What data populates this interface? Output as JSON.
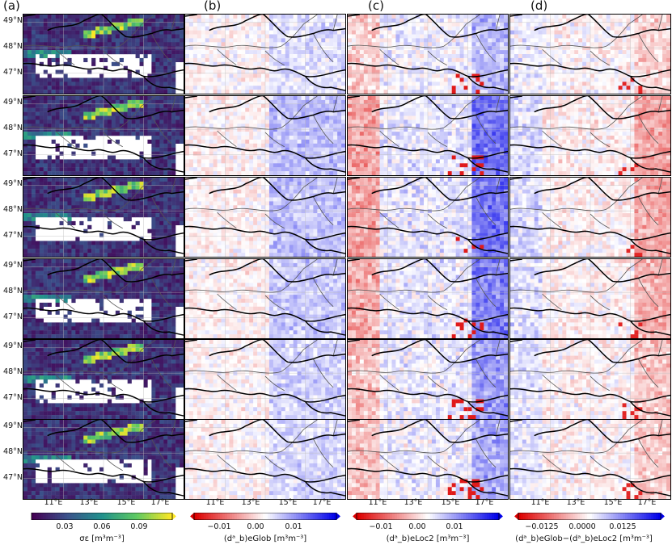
{
  "columns": [
    {
      "label": "(a)",
      "colorbar_label": "σε [m³m⁻³]",
      "colorbar_ticks": [
        "0.03",
        "0.06",
        "0.09"
      ],
      "colormap": "viridis"
    },
    {
      "label": "(b)",
      "colorbar_label": "(dᵃ_b)eGlob [m³m⁻³]",
      "colorbar_ticks": [
        "−0.01",
        "0.00",
        "0.01"
      ],
      "colormap": "seismic_r"
    },
    {
      "label": "(c)",
      "colorbar_label": "(dᵃ_b)eLoc2 [m³m⁻³]",
      "colorbar_ticks": [
        "−0.01",
        "0.00",
        "0.01"
      ],
      "colormap": "seismic_r"
    },
    {
      "label": "(d)",
      "colorbar_label": "(dᵃ_b)eGlob−(dᵃ_b)eLoc2 [m³m⁻³]",
      "colorbar_ticks": [
        "−0.0125",
        "0.0000",
        "0.0125"
      ],
      "colormap": "seismic_r"
    }
  ],
  "lat_labels": [
    "49°N",
    "48°N",
    "47°N"
  ],
  "lon_labels": [
    "11°E",
    "13°E",
    "15°E",
    "17°E"
  ],
  "rows": 6
}
